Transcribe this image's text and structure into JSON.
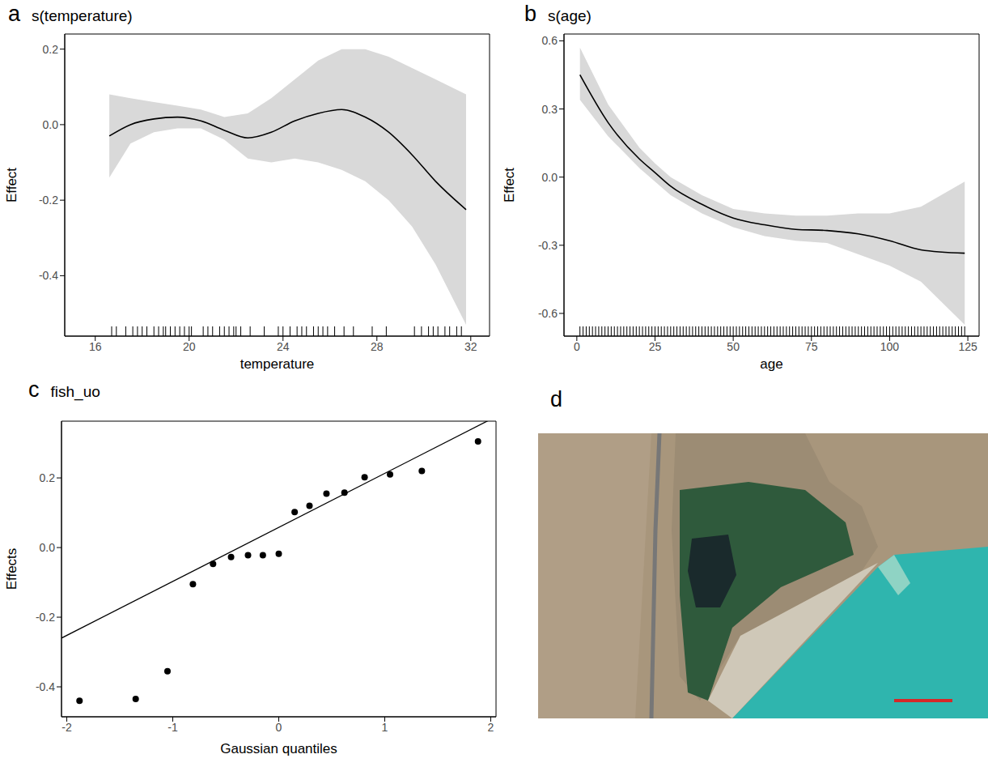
{
  "chart_data": [
    {
      "panel": "a",
      "title": "s(temperature)",
      "type": "line",
      "x_label": "temperature",
      "y_label": "Effect",
      "color": "#000000",
      "band_color": "#d9d9d9",
      "xlim": [
        14.7,
        32.8
      ],
      "ylim": [
        -0.56,
        0.24
      ],
      "xticks": [
        16,
        20,
        24,
        28,
        32
      ],
      "yticks": [
        -0.4,
        -0.2,
        {
          "value": 0,
          "label": "0.0"
        },
        0.2
      ],
      "x": [
        16.6,
        17.5,
        18.5,
        19.5,
        20.5,
        21.5,
        22.5,
        23.5,
        24.5,
        25.5,
        26.5,
        27.5,
        28.5,
        29.5,
        30.5,
        31.8
      ],
      "values": [
        -0.03,
        0.0,
        0.015,
        0.02,
        0.01,
        -0.015,
        -0.035,
        -0.02,
        0.01,
        0.03,
        0.04,
        0.02,
        -0.02,
        -0.08,
        -0.15,
        -0.225
      ],
      "lower": [
        -0.14,
        -0.05,
        -0.02,
        -0.01,
        -0.01,
        -0.04,
        -0.09,
        -0.1,
        -0.09,
        -0.1,
        -0.12,
        -0.15,
        -0.2,
        -0.27,
        -0.37,
        -0.53
      ],
      "upper": [
        0.08,
        0.07,
        0.06,
        0.05,
        0.04,
        0.02,
        0.03,
        0.07,
        0.12,
        0.17,
        0.2,
        0.2,
        0.18,
        0.15,
        0.12,
        0.08
      ],
      "rug": [
        16.7,
        16.9,
        17.3,
        17.6,
        17.8,
        18.0,
        18.2,
        18.5,
        18.7,
        18.9,
        19.0,
        19.2,
        19.4,
        19.6,
        19.8,
        20.0,
        20.1,
        20.6,
        20.8,
        21.0,
        21.3,
        21.5,
        21.7,
        21.9,
        22.0,
        22.2,
        22.6,
        23.2,
        23.8,
        24.0,
        24.3,
        24.6,
        24.8,
        25.0,
        25.3,
        25.5,
        25.7,
        25.9,
        26.2,
        26.6,
        27.0,
        27.8,
        28.4,
        29.6,
        29.9,
        30.2,
        30.4,
        30.6,
        30.9,
        31.1,
        31.4,
        31.6
      ]
    },
    {
      "panel": "b",
      "title": "s(age)",
      "type": "line",
      "x_label": "age",
      "y_label": "Effect",
      "color": "#000000",
      "band_color": "#d9d9d9",
      "xlim": [
        -4.1,
        128.6
      ],
      "ylim": [
        -0.7,
        0.63
      ],
      "xticks": [
        0,
        25,
        50,
        75,
        100,
        125
      ],
      "yticks": [
        -0.6,
        -0.3,
        {
          "value": 0,
          "label": "0.0"
        },
        0.3,
        0.6
      ],
      "x": [
        1,
        10,
        20,
        25,
        30,
        40,
        50,
        60,
        70,
        80,
        90,
        100,
        110,
        124
      ],
      "values": [
        0.45,
        0.24,
        0.08,
        0.02,
        -0.04,
        -0.12,
        -0.18,
        -0.21,
        -0.23,
        -0.235,
        -0.25,
        -0.28,
        -0.32,
        -0.335
      ],
      "lower": [
        0.34,
        0.18,
        0.04,
        -0.02,
        -0.08,
        -0.16,
        -0.22,
        -0.26,
        -0.28,
        -0.29,
        -0.34,
        -0.39,
        -0.46,
        -0.65
      ],
      "upper": [
        0.57,
        0.32,
        0.13,
        0.06,
        0.0,
        -0.08,
        -0.14,
        -0.16,
        -0.17,
        -0.17,
        -0.16,
        -0.16,
        -0.13,
        -0.02
      ],
      "rug": [
        1,
        2,
        3,
        4,
        5,
        6,
        7,
        8,
        9,
        10,
        11,
        12,
        13,
        14,
        15,
        16,
        17,
        18,
        19,
        20,
        21,
        22,
        23,
        24,
        25,
        26,
        27,
        28,
        29,
        30,
        31,
        32,
        33,
        34,
        35,
        36,
        37,
        38,
        39,
        40,
        41,
        42,
        43,
        44,
        45,
        46,
        47,
        48,
        49,
        50,
        51,
        52,
        53,
        54,
        55,
        56,
        57,
        58,
        59,
        60,
        61,
        62,
        63,
        64,
        65,
        66,
        67,
        68,
        69,
        70,
        71,
        72,
        73,
        74,
        75,
        76,
        77,
        78,
        79,
        80,
        81,
        82,
        83,
        84,
        85,
        86,
        87,
        88,
        89,
        90,
        91,
        92,
        93,
        94,
        95,
        96,
        97,
        98,
        99,
        100,
        101,
        102,
        103,
        104,
        105,
        106,
        107,
        108,
        109,
        110,
        111,
        112,
        113,
        114,
        115,
        116,
        117,
        118,
        119,
        120,
        121,
        122,
        123,
        124
      ]
    },
    {
      "panel": "c",
      "title": "fish_uo",
      "type": "scatter",
      "x_label": "Gaussian quantiles",
      "y_label": "Effects",
      "color": "#000000",
      "xlim": [
        -2.05,
        2.05
      ],
      "ylim": [
        -0.486,
        0.363
      ],
      "xticks": [
        -2,
        -1,
        0,
        1,
        2
      ],
      "yticks": [
        -0.4,
        -0.2,
        {
          "value": 0,
          "label": "0.0"
        },
        0.2
      ],
      "x": [
        -1.88,
        -1.35,
        -1.05,
        -0.81,
        -0.62,
        -0.45,
        -0.29,
        -0.15,
        0,
        0.15,
        0.29,
        0.45,
        0.62,
        0.81,
        1.05,
        1.35,
        1.88
      ],
      "values": [
        -0.44,
        -0.435,
        -0.355,
        -0.105,
        -0.047,
        -0.027,
        -0.022,
        -0.022,
        -0.018,
        0.102,
        0.12,
        0.155,
        0.158,
        0.202,
        0.21,
        0.22,
        0.305
      ],
      "reference_line": {
        "x": [
          -2.05,
          2.05
        ],
        "y": [
          -0.26,
          0.376
        ]
      }
    }
  ],
  "image": {
    "panel": "d"
  }
}
